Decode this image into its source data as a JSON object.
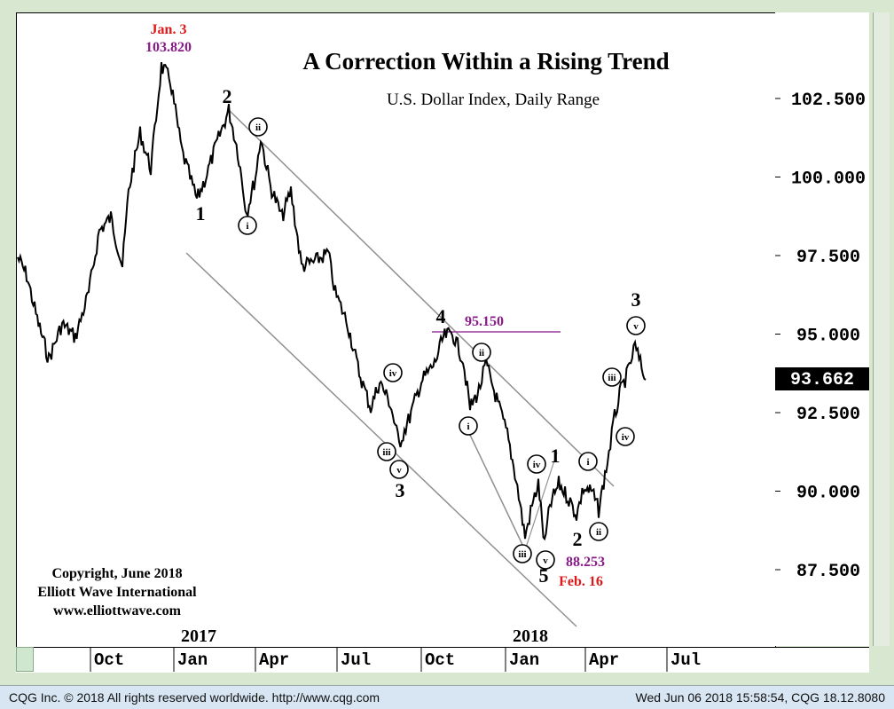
{
  "chart_data": {
    "type": "line",
    "title": "A Correction Within a Rising Trend",
    "subtitle": "U.S. Dollar Index, Daily Range",
    "y_ticks": [
      "102.500",
      "100.000",
      "97.500",
      "95.000",
      "92.500",
      "90.000",
      "87.500"
    ],
    "y_tick_values": [
      102.5,
      100.0,
      97.5,
      95.0,
      92.5,
      90.0,
      87.5
    ],
    "ylim": [
      84.7,
      105.2
    ],
    "last_price": "93.662",
    "last_price_value": 93.662,
    "x_ticks": [
      "Oct",
      "Jan",
      "Apr",
      "Jul",
      "Oct",
      "Jan",
      "Apr",
      "Jul"
    ],
    "year_labels": [
      "2017",
      "2017",
      "2018"
    ],
    "year_label_text": {
      "y2017": "2017",
      "y2018": "2018"
    },
    "series": [
      {
        "values_description": "U.S. Dollar Index daily close (approximate)",
        "dates": [
          "2016-06",
          "2016-07",
          "2016-08",
          "2016-09",
          "2016-10",
          "2016-11",
          "2016-12",
          "2017-01-03",
          "2017-02",
          "2017-03",
          "2017-04",
          "2017-05",
          "2017-06",
          "2017-07",
          "2017-08",
          "2017-09",
          "2017-10",
          "2017-11",
          "2017-12",
          "2018-01",
          "2018-02-16",
          "2018-03",
          "2018-04",
          "2018-05",
          "2018-06"
        ],
        "values": [
          96.2,
          96.5,
          94.8,
          95.4,
          97.0,
          100.5,
          102.8,
          103.8,
          99.8,
          101.5,
          98.6,
          97.0,
          96.2,
          93.4,
          92.9,
          91.7,
          94.5,
          93.3,
          92.7,
          88.6,
          88.253,
          89.9,
          89.2,
          93.5,
          93.662
        ]
      }
    ],
    "annotations": {
      "high_date": "Jan. 3",
      "high_value": "103.820",
      "low_value": "88.253",
      "low_date": "Feb. 16",
      "level_line_label": "95.150",
      "wave_labels": [
        "2",
        "1",
        "3",
        "4",
        "5",
        "1",
        "2",
        "3"
      ],
      "subwave_labels": [
        "ii",
        "i",
        "iv",
        "iii",
        "v",
        "ii",
        "i",
        "iv",
        "iii",
        "v",
        "i",
        "ii",
        "iii",
        "iv",
        "v"
      ]
    },
    "copyright": [
      "Copyright, June 2018",
      "Elliott Wave International",
      "www.elliottwave.com"
    ]
  },
  "status_bar": {
    "left": "CQG Inc. © 2018 All rights reserved worldwide. http://www.cqg.com",
    "right": "Wed Jun 06 2018 15:58:54, CQG 18.12.8080"
  },
  "colors": {
    "high_date": "#e01818",
    "high_value": "#8a1a8a",
    "level_line": "#9a3a9a",
    "channel": "#909090",
    "price": "#000000"
  }
}
